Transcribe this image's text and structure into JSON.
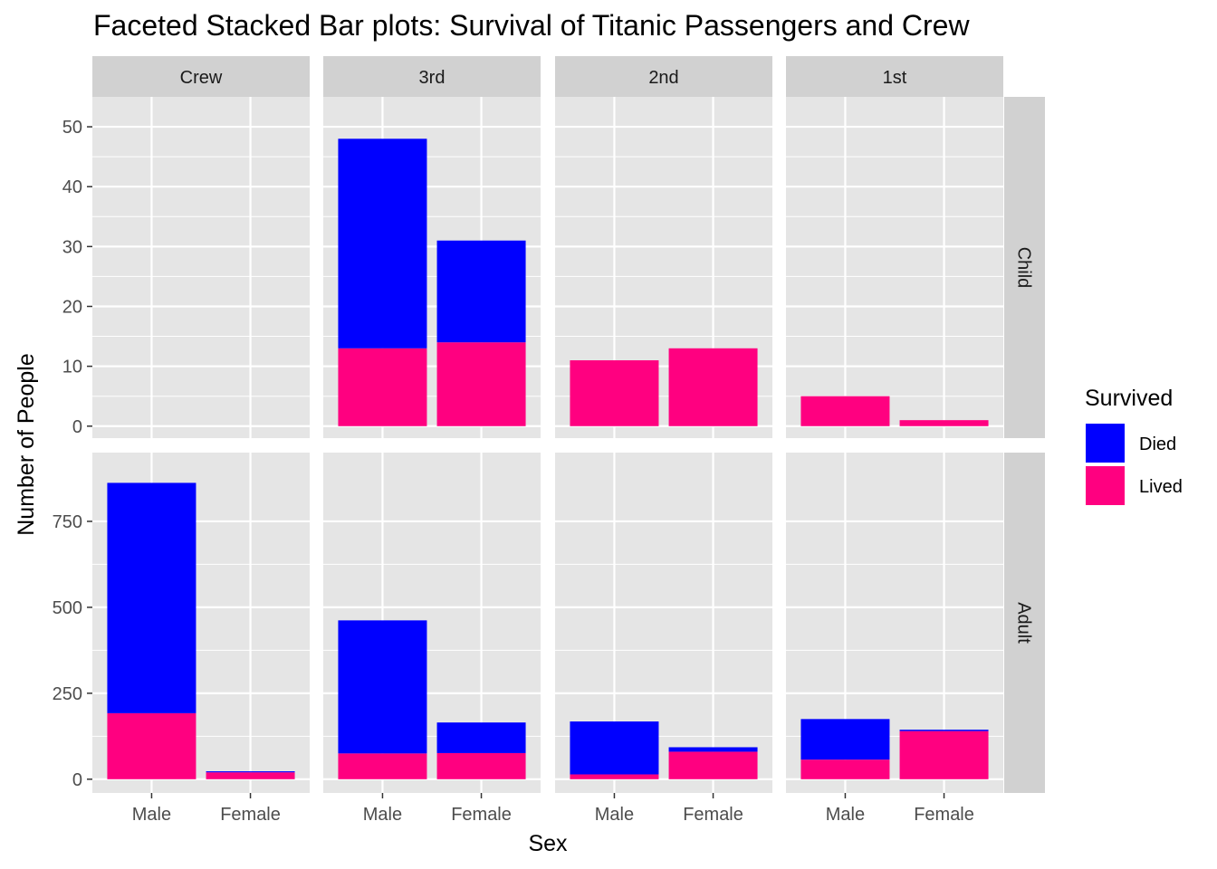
{
  "chart_data": {
    "type": "bar",
    "stacked": true,
    "title": "Faceted Stacked Bar plots: Survival of Titanic Passengers and Crew",
    "xlabel": "Sex",
    "ylabel": "Number of People",
    "categories": [
      "Male",
      "Female"
    ],
    "column_facets": [
      "Crew",
      "3rd",
      "2nd",
      "1st"
    ],
    "row_facets": [
      {
        "name": "Child",
        "ylim": [
          -2,
          55
        ],
        "yticks": [
          0,
          10,
          20,
          30,
          40,
          50
        ],
        "ytick_labels": [
          "0",
          "10",
          "20",
          "30",
          "40",
          "50"
        ],
        "panels": [
          {
            "class": "Crew",
            "series": [
              {
                "name": "Lived",
                "values": [
                  0,
                  0
                ]
              },
              {
                "name": "Died",
                "values": [
                  0,
                  0
                ]
              }
            ]
          },
          {
            "class": "3rd",
            "series": [
              {
                "name": "Lived",
                "values": [
                  13,
                  14
                ]
              },
              {
                "name": "Died",
                "values": [
                  35,
                  17
                ]
              }
            ]
          },
          {
            "class": "2nd",
            "series": [
              {
                "name": "Lived",
                "values": [
                  11,
                  13
                ]
              },
              {
                "name": "Died",
                "values": [
                  0,
                  0
                ]
              }
            ]
          },
          {
            "class": "1st",
            "series": [
              {
                "name": "Lived",
                "values": [
                  5,
                  1
                ]
              },
              {
                "name": "Died",
                "values": [
                  0,
                  0
                ]
              }
            ]
          }
        ]
      },
      {
        "name": "Adult",
        "ylim": [
          -40,
          950
        ],
        "yticks": [
          0,
          250,
          500,
          750
        ],
        "ytick_labels": [
          "0",
          "250",
          "500",
          "750"
        ],
        "panels": [
          {
            "class": "Crew",
            "series": [
              {
                "name": "Lived",
                "values": [
                  192,
                  20
                ]
              },
              {
                "name": "Died",
                "values": [
                  670,
                  3
                ]
              }
            ]
          },
          {
            "class": "3rd",
            "series": [
              {
                "name": "Lived",
                "values": [
                  75,
                  76
                ]
              },
              {
                "name": "Died",
                "values": [
                  387,
                  89
                ]
              }
            ]
          },
          {
            "class": "2nd",
            "series": [
              {
                "name": "Lived",
                "values": [
                  14,
                  80
                ]
              },
              {
                "name": "Died",
                "values": [
                  154,
                  13
                ]
              }
            ]
          },
          {
            "class": "1st",
            "series": [
              {
                "name": "Lived",
                "values": [
                  57,
                  140
                ]
              },
              {
                "name": "Died",
                "values": [
                  118,
                  4
                ]
              }
            ]
          }
        ]
      }
    ],
    "legend": {
      "title": "Survived",
      "position": "right",
      "entries": [
        {
          "name": "Died",
          "color": "#0000FF"
        },
        {
          "name": "Lived",
          "color": "#FF0080"
        }
      ]
    },
    "colors": {
      "Died": "#0000FF",
      "Lived": "#FF0080",
      "panel_background": "#E5E5E5",
      "strip_background": "#D1D1D1",
      "grid": "#FFFFFF"
    }
  }
}
